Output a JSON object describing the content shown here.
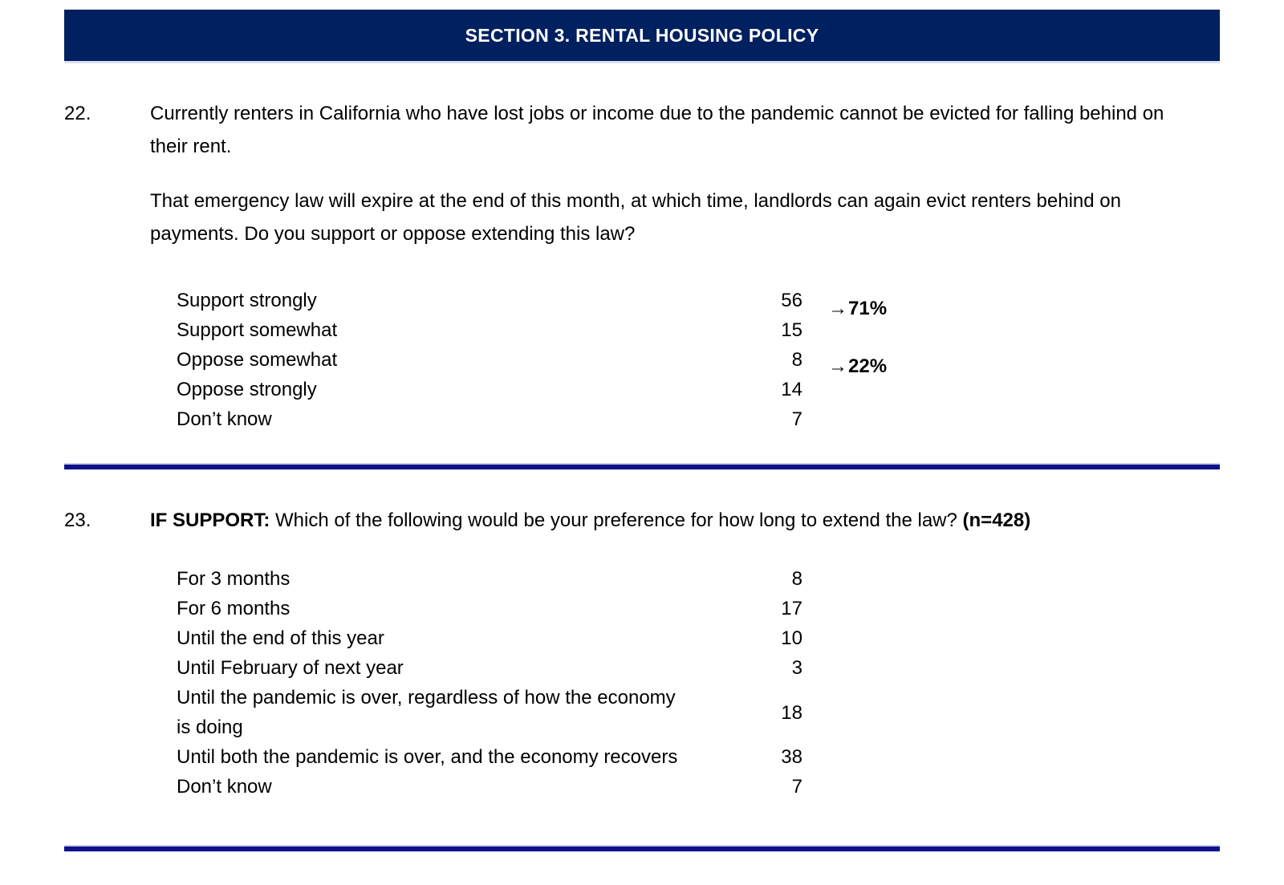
{
  "section_header": {
    "title": "SECTION 3. RENTAL HOUSING POLICY"
  },
  "colors": {
    "banner_bg": "#002060",
    "banner_text": "#ffffff",
    "divider": "#10108a",
    "body_text": "#000000"
  },
  "q22": {
    "number": "22.",
    "paragraphs": [
      "Currently renters in California who have lost jobs or income due to the pandemic cannot be evicted for falling behind on their rent.",
      "That emergency law will expire at the end of this month, at which time, landlords can again evict renters behind on payments. Do you support or oppose extending this law?"
    ],
    "responses": [
      {
        "label": "Support strongly",
        "value": "56"
      },
      {
        "label": "Support somewhat",
        "value": "15"
      },
      {
        "label": "Oppose somewhat",
        "value": "8"
      },
      {
        "label": "Oppose strongly",
        "value": "14"
      },
      {
        "label": "Don’t know",
        "value": "7"
      }
    ],
    "aggregates": [
      {
        "arrow": "→",
        "label": "71%"
      },
      {
        "arrow": "→",
        "label": "22%"
      }
    ]
  },
  "q23": {
    "number": "23.",
    "prefix_bold": "IF SUPPORT:",
    "question": "Which of the following would be your preference for how long to extend the law?",
    "n_bold": "(n=428)",
    "responses": [
      {
        "label": "For 3 months",
        "value": "8"
      },
      {
        "label": "For 6 months",
        "value": "17"
      },
      {
        "label": "Until the end of this year",
        "value": "10"
      },
      {
        "label": "Until February of next year",
        "value": "3"
      },
      {
        "label": "Until the pandemic is over, regardless of how the economy is doing",
        "value": "18"
      },
      {
        "label": "Until both the pandemic is over, and the economy recovers",
        "value": "38"
      },
      {
        "label": "Don’t know",
        "value": "7"
      }
    ]
  }
}
